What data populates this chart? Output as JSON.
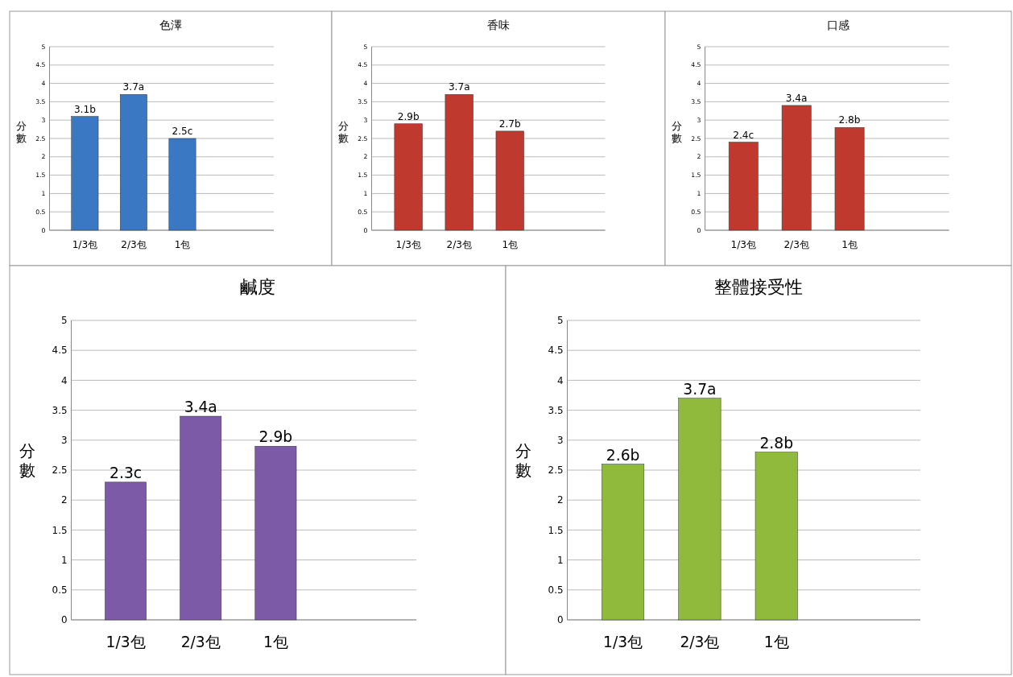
{
  "chart_data": [
    {
      "type": "bar",
      "title": "色澤",
      "ylabel": "分數",
      "categories": [
        "1/3包",
        "2/3包",
        "1包"
      ],
      "values": [
        3.1,
        3.7,
        2.5
      ],
      "value_labels": [
        "3.1b",
        "3.7a",
        "2.5c"
      ],
      "color": "#3a78c4",
      "ylim": [
        0,
        5
      ],
      "yticks": [
        0,
        0.5,
        1,
        1.5,
        2,
        2.5,
        3,
        3.5,
        4,
        4.5,
        5
      ],
      "grid": "y"
    },
    {
      "type": "bar",
      "title": "香味",
      "ylabel": "分數",
      "categories": [
        "1/3包",
        "2/3包",
        "1包"
      ],
      "values": [
        2.9,
        3.7,
        2.7
      ],
      "value_labels": [
        "2.9b",
        "3.7a",
        "2.7b"
      ],
      "color": "#c0392f",
      "ylim": [
        0,
        5
      ],
      "yticks": [
        0,
        0.5,
        1,
        1.5,
        2,
        2.5,
        3,
        3.5,
        4,
        4.5,
        5
      ],
      "grid": "y"
    },
    {
      "type": "bar",
      "title": "口感",
      "ylabel": "分數",
      "categories": [
        "1/3包",
        "2/3包",
        "1包"
      ],
      "values": [
        2.4,
        3.4,
        2.8
      ],
      "value_labels": [
        "2.4c",
        "3.4a",
        "2.8b"
      ],
      "color": "#c0392f",
      "ylim": [
        0,
        5
      ],
      "yticks": [
        0,
        0.5,
        1,
        1.5,
        2,
        2.5,
        3,
        3.5,
        4,
        4.5,
        5
      ],
      "grid": "y"
    },
    {
      "type": "bar",
      "title": "鹹度",
      "ylabel": "分數",
      "categories": [
        "1/3包",
        "2/3包",
        "1包"
      ],
      "values": [
        2.3,
        3.4,
        2.9
      ],
      "value_labels": [
        "2.3c",
        "3.4a",
        "2.9b"
      ],
      "color": "#7d5aa8",
      "ylim": [
        0,
        5
      ],
      "yticks": [
        0,
        0.5,
        1,
        1.5,
        2,
        2.5,
        3,
        3.5,
        4,
        4.5,
        5
      ],
      "grid": "y"
    },
    {
      "type": "bar",
      "title": "整體接受性",
      "ylabel": "分數",
      "categories": [
        "1/3包",
        "2/3包",
        "1包"
      ],
      "values": [
        2.6,
        3.7,
        2.8
      ],
      "value_labels": [
        "2.6b",
        "3.7a",
        "2.8b"
      ],
      "color": "#8fba3c",
      "ylim": [
        0,
        5
      ],
      "yticks": [
        0,
        0.5,
        1,
        1.5,
        2,
        2.5,
        3,
        3.5,
        4,
        4.5,
        5
      ],
      "grid": "y"
    }
  ]
}
